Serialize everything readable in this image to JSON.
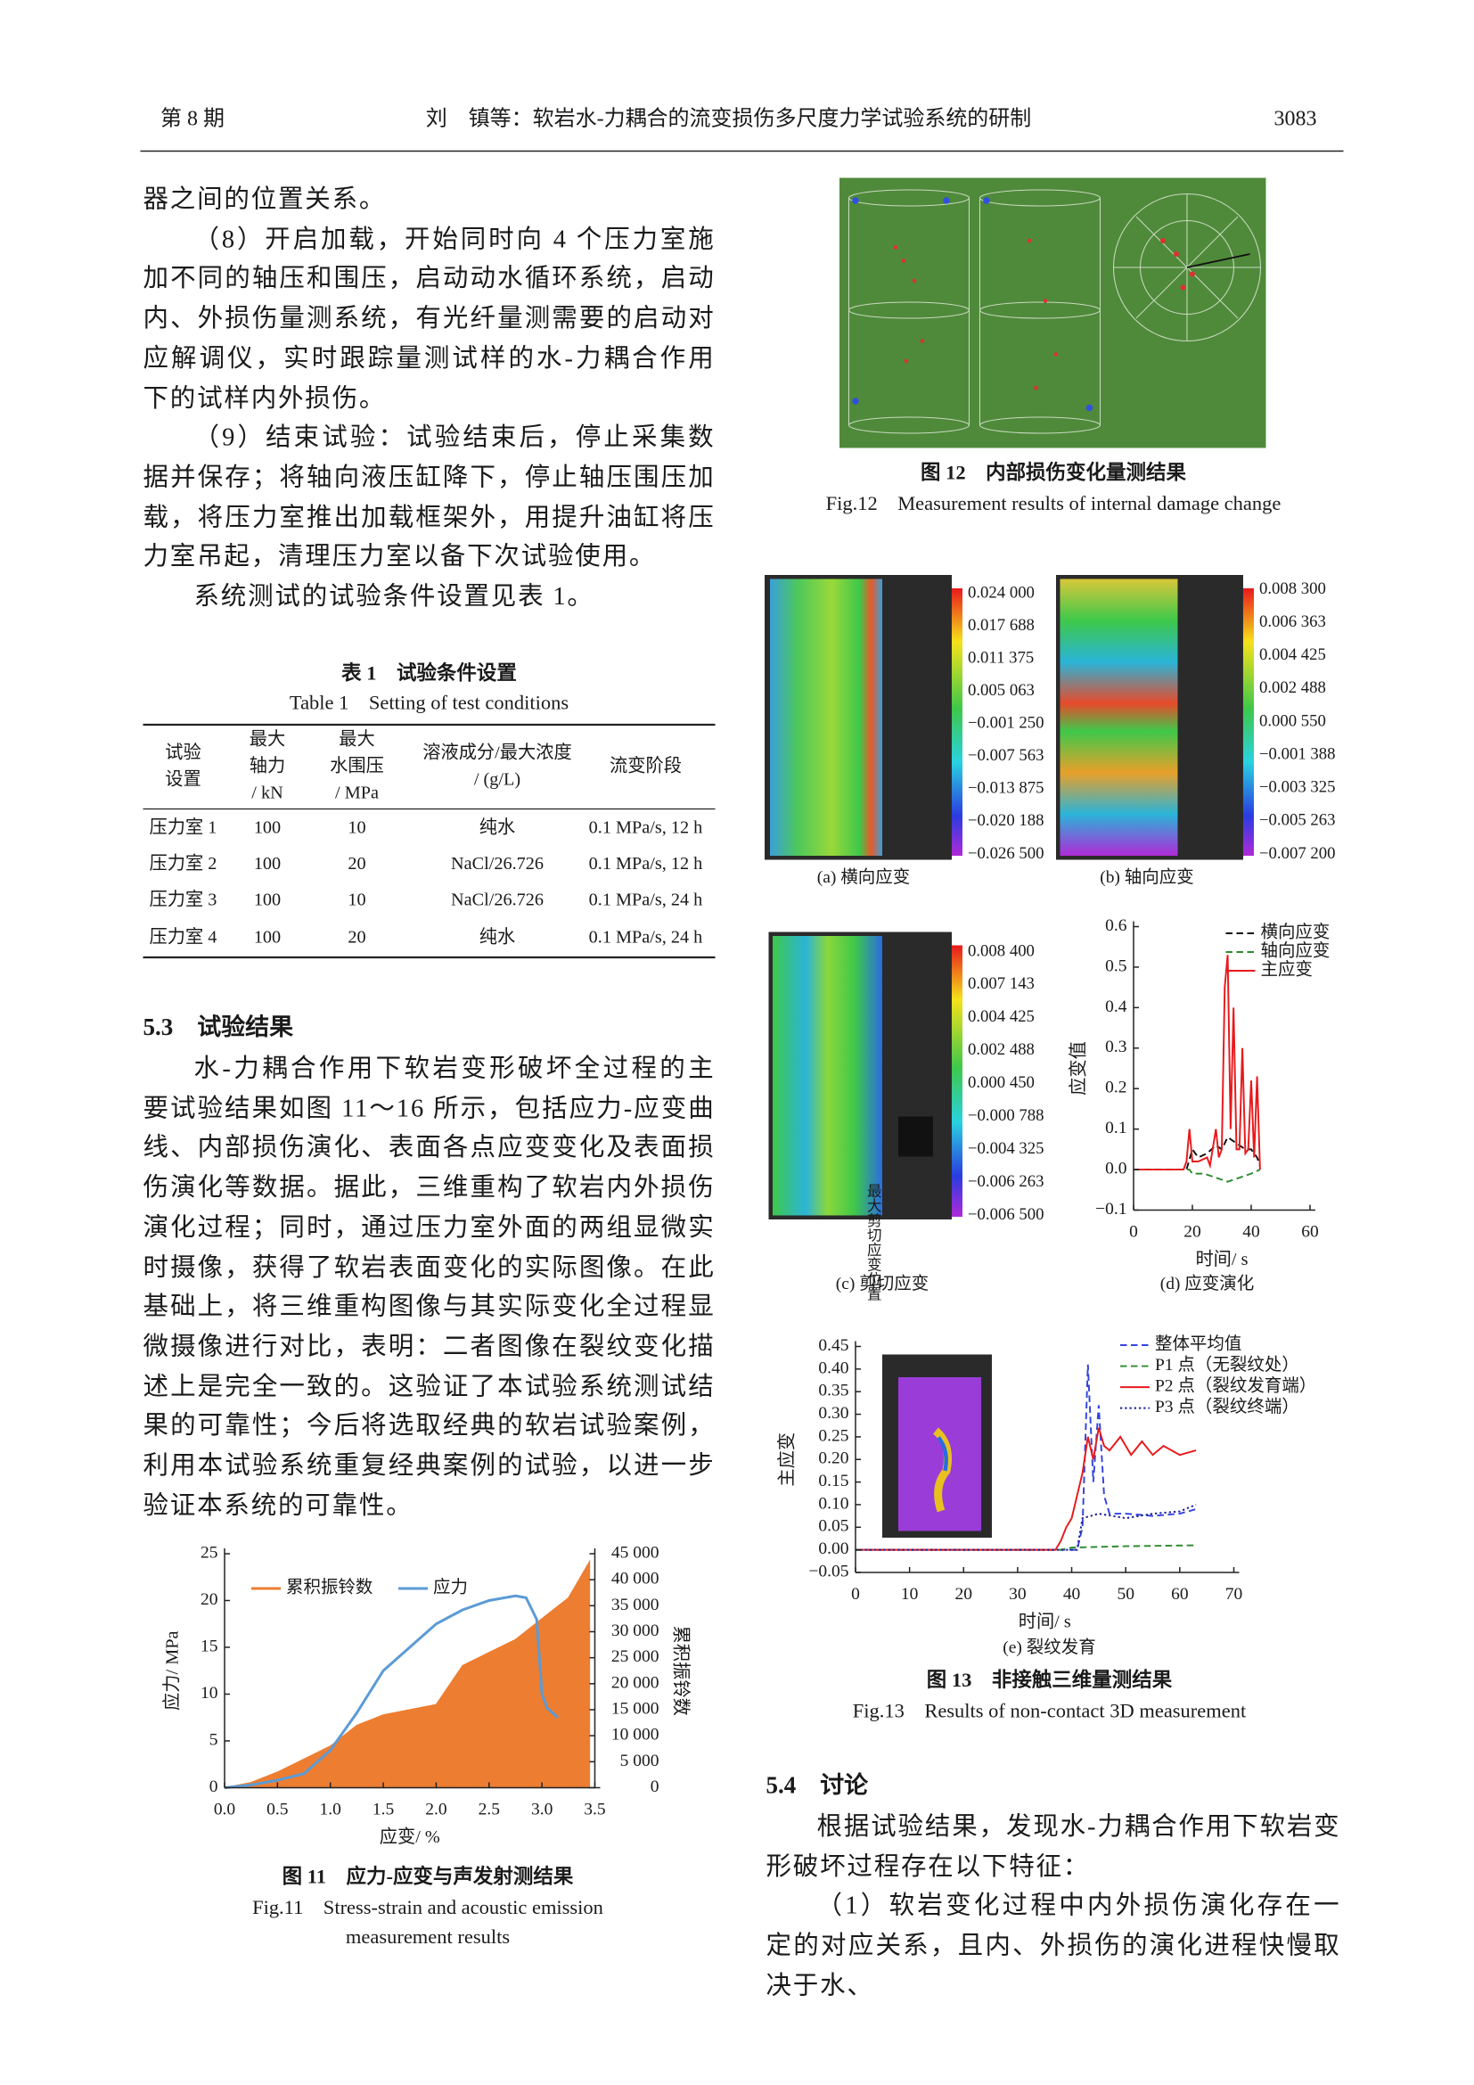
{
  "header": {
    "issue": "第 8 期",
    "title": "刘　镇等：软岩水-力耦合的流变损伤多尺度力学试验系统的研制",
    "page": "3083"
  },
  "left_column": {
    "paragraphs": [
      "器之间的位置关系。",
      "（8）开启加载，开始同时向 4 个压力室施加不同的轴压和围压，启动动水循环系统，启动内、外损伤量测系统，有光纤量测需要的启动对应解调仪，实时跟踪量测试样的水-力耦合作用下的试样内外损伤。",
      "（9）结束试验：试验结束后，停止采集数据并保存；将轴向液压缸降下，停止轴压围压加载，将压力室推出加载框架外，用提升油缸将压力室吊起，清理压力室以备下次试验使用。",
      "系统测试的试验条件设置见表 1。"
    ],
    "section_heading": "5.3　试验结果",
    "section_paragraphs": [
      "水-力耦合作用下软岩变形破坏全过程的主要试验结果如图 11～16 所示，包括应力-应变曲线、内部损伤演化、表面各点应变变化及表面损伤演化等数据。据此，三维重构了软岩内外损伤演化过程；同时，通过压力室外面的两组显微实时摄像，获得了软岩表面变化的实际图像。在此基础上，将三维重构图像与其实际变化全过程显微摄像进行对比，表明：二者图像在裂纹变化描述上是完全一致的。这验证了本试验系统测试结果的可靠性；今后将选取经典的软岩试验案例，利用本试验系统重复经典案例的试验，以进一步验证本系统的可靠性。"
    ]
  },
  "table": {
    "title_cn": "表 1　试验条件设置",
    "title_en": "Table 1　Setting of test conditions",
    "header": [
      [
        "试验",
        "设置"
      ],
      [
        "最大",
        "轴力",
        "/ kN"
      ],
      [
        "最大",
        "水围压",
        "/ MPa"
      ],
      [
        "溶液成分/最大浓度",
        "/ (g/L)"
      ],
      [
        "流变阶段"
      ]
    ],
    "rows": [
      [
        "压力室 1",
        "100",
        "10",
        "纯水",
        "0.1 MPa/s, 12 h"
      ],
      [
        "压力室 2",
        "100",
        "20",
        "NaCl/26.726",
        "0.1 MPa/s, 12 h"
      ],
      [
        "压力室 3",
        "100",
        "10",
        "NaCl/26.726",
        "0.1 MPa/s, 24 h"
      ],
      [
        "压力室 4",
        "100",
        "20",
        "纯水",
        "0.1 MPa/s, 24 h"
      ]
    ]
  },
  "figures": {
    "fig11": {
      "caption_cn": "图 11　应力-应变与声发射测结果",
      "caption_en": [
        "Fig.11　Stress-strain and acoustic emission",
        "measurement results"
      ]
    },
    "fig12": {
      "caption_cn": "图 12　内部损伤变化量测结果",
      "caption_en": "Fig.12　Measurement results of internal damage change"
    },
    "fig13": {
      "caption_cn": "图 13　非接触三维量测结果",
      "caption_en": "Fig.13　Results of non-contact 3D measurement",
      "panels": [
        "(a) 横向应变",
        "(b) 轴向应变",
        "(c) 剪切应变",
        "(d) 应变演化",
        "(e) 裂纹发育"
      ],
      "colorbar_a": [
        "0.024 000",
        "0.017 688",
        "0.011 375",
        "0.005 063",
        "−0.001 250",
        "−0.007 563",
        "−0.013 875",
        "−0.020 188",
        "−0.026 500"
      ],
      "colorbar_b": [
        "0.008 300",
        "0.006 363",
        "0.004 425",
        "0.002 488",
        "0.000 550",
        "−0.001 388",
        "−0.003 325",
        "−0.005 263",
        "−0.007 200"
      ],
      "colorbar_c": [
        "0.008 400",
        "0.007 143",
        "0.004 425",
        "0.002 488",
        "0.000 450",
        "−0.000 788",
        "−0.004 325",
        "−0.006 263",
        "−0.006 500"
      ],
      "overlay_c": "最大剪切应变位置"
    }
  },
  "right_column": {
    "section_heading": "5.4　讨论",
    "paragraphs": [
      "根据试验结果，发现水-力耦合作用下软岩变形破坏过程存在以下特征：",
      "（1）软岩变化过程中内外损伤演化存在一定的对应关系，且内、外损伤的演化进程快慢取决于水、"
    ]
  },
  "chart_data": [
    {
      "type": "line",
      "xlabel": "应变/ %",
      "ylabel": "应力/ MPa",
      "y2label": "累积振铃数",
      "xlim": [
        0,
        3.5
      ],
      "xticks": [
        {
          "value": 0,
          "label": "0.0"
        },
        0.5,
        {
          "value": 1,
          "label": "1.0"
        },
        1.5,
        {
          "value": 2,
          "label": "2.0"
        },
        2.5,
        {
          "value": 3,
          "label": "3.0"
        },
        3.5
      ],
      "ylim": [
        0,
        25
      ],
      "yticks": [
        0,
        5,
        10,
        15,
        20,
        25
      ],
      "y2lim": [
        0,
        45000
      ],
      "y2ticks": [
        0,
        {
          "value": 5000,
          "label": "5 000"
        },
        {
          "value": 10000,
          "label": "10 000"
        },
        {
          "value": 15000,
          "label": "15 000"
        },
        {
          "value": 20000,
          "label": "20 000"
        },
        {
          "value": 25000,
          "label": "25 000"
        },
        {
          "value": 30000,
          "label": "30 000"
        },
        {
          "value": 35000,
          "label": "35 000"
        },
        {
          "value": 40000,
          "label": "40 000"
        },
        {
          "value": 45000,
          "label": "45 000"
        }
      ],
      "series": [
        {
          "name": "累积振铃数",
          "color": "#ed7d31",
          "kind": "area",
          "axis": "y2",
          "linestyle": "solid",
          "x": [
            0,
            0.25,
            0.5,
            0.75,
            1.0,
            1.25,
            1.5,
            1.75,
            2.0,
            2.25,
            2.5,
            2.75,
            3.0,
            3.25,
            3.45
          ],
          "values": [
            0,
            1000,
            3000,
            5500,
            8000,
            12000,
            14000,
            15000,
            16000,
            23500,
            26000,
            28500,
            32500,
            36500,
            43500
          ]
        },
        {
          "name": "应力",
          "color": "#5b9bd5",
          "kind": "line",
          "linestyle": "solid",
          "x": [
            0,
            0.25,
            0.5,
            0.75,
            1.0,
            1.25,
            1.5,
            1.75,
            2.0,
            2.25,
            2.5,
            2.75,
            2.85,
            2.95,
            3.0,
            3.05,
            3.15
          ],
          "values": [
            0,
            0.3,
            0.8,
            1.5,
            4,
            8,
            12.5,
            15,
            17.5,
            19,
            20,
            20.5,
            20.3,
            18,
            10,
            8.5,
            7.5
          ]
        }
      ]
    },
    {
      "type": "line",
      "xlabel": "时间/ s",
      "ylabel": "应变值",
      "xlim": [
        0,
        60
      ],
      "xticks": [
        0,
        20,
        40,
        60
      ],
      "ylim": [
        -0.1,
        0.6
      ],
      "yticks": [
        {
          "value": -0.1,
          "label": "−0.1"
        },
        {
          "value": 0,
          "label": "0.0"
        },
        0.1,
        0.2,
        0.3,
        0.4,
        0.5,
        0.6
      ],
      "series": [
        {
          "name": "横向应变",
          "color": "#111111",
          "kind": "line",
          "linestyle": "dashed",
          "x": [
            0,
            18,
            20,
            22,
            25,
            28,
            30,
            32,
            34,
            36,
            38,
            40,
            42,
            43
          ],
          "values": [
            0,
            0,
            0.05,
            0.03,
            0.04,
            0.06,
            0.05,
            0.08,
            0.07,
            0.06,
            0.05,
            0.05,
            0.03,
            0.01
          ]
        },
        {
          "name": "轴向应变",
          "color": "#2e8b2e",
          "kind": "line",
          "linestyle": "dashed",
          "x": [
            0,
            19,
            20,
            24,
            28,
            32,
            36,
            40,
            43
          ],
          "values": [
            0,
            0,
            -0.01,
            -0.01,
            -0.02,
            -0.03,
            -0.02,
            -0.01,
            0
          ]
        },
        {
          "name": "主应变",
          "color": "#e8191c",
          "kind": "line",
          "linestyle": "solid",
          "x": [
            0,
            17,
            18,
            19,
            20,
            22,
            25,
            26,
            28,
            29,
            30,
            31,
            32,
            33,
            34,
            35,
            36,
            37,
            38,
            39,
            40,
            41,
            42,
            43
          ],
          "values": [
            0,
            0,
            0.02,
            0.1,
            0.02,
            0.02,
            0.03,
            0.01,
            0.1,
            0.03,
            0.05,
            0.45,
            0.53,
            0.1,
            0.4,
            0.05,
            0.05,
            0.3,
            0.04,
            0.05,
            0.22,
            0.03,
            0.23,
            0
          ]
        }
      ]
    },
    {
      "type": "line",
      "xlabel": "时间/ s",
      "ylabel": "主应变",
      "xlim": [
        0,
        70
      ],
      "xticks": [
        0,
        10,
        20,
        30,
        40,
        50,
        60,
        70
      ],
      "ylim": [
        -0.05,
        0.45
      ],
      "yticks": [
        {
          "value": -0.05,
          "label": "−0.05"
        },
        {
          "value": 0,
          "label": "0.00"
        },
        0.05,
        {
          "value": 0.1,
          "label": "0.10"
        },
        0.15,
        {
          "value": 0.2,
          "label": "0.20"
        },
        0.25,
        {
          "value": 0.3,
          "label": "0.30"
        },
        0.35,
        {
          "value": 0.4,
          "label": "0.40"
        },
        0.45
      ],
      "series": [
        {
          "name": "整体平均值",
          "color": "#3344dd",
          "kind": "line",
          "linestyle": "dashed",
          "x": [
            0,
            41,
            42,
            43,
            44,
            45,
            46,
            47,
            50,
            55,
            60,
            63
          ],
          "values": [
            0,
            0,
            0.05,
            0.41,
            0.15,
            0.32,
            0.12,
            0.08,
            0.08,
            0.075,
            0.08,
            0.09
          ]
        },
        {
          "name": "P1 点（无裂纹处）",
          "color": "#2e8b2e",
          "kind": "line",
          "linestyle": "dashed",
          "x": [
            0,
            38,
            40,
            50,
            63
          ],
          "values": [
            0,
            0,
            0.005,
            0.008,
            0.01
          ]
        },
        {
          "name": "P2 点（裂纹发育端）",
          "color": "#e8191c",
          "kind": "line",
          "linestyle": "solid",
          "x": [
            0,
            37,
            38,
            39,
            40,
            41,
            42,
            43,
            44,
            45,
            46,
            47,
            49,
            51,
            53,
            55,
            57,
            60,
            63
          ],
          "values": [
            0,
            0,
            0.02,
            0.05,
            0.07,
            0.12,
            0.17,
            0.25,
            0.2,
            0.27,
            0.23,
            0.22,
            0.25,
            0.21,
            0.24,
            0.21,
            0.23,
            0.21,
            0.22
          ]
        },
        {
          "name": "P3 点（裂纹终端）",
          "color": "#1a1a9a",
          "kind": "line",
          "linestyle": "dotted",
          "x": [
            0,
            41,
            42,
            45,
            50,
            55,
            60,
            63
          ],
          "values": [
            0,
            0,
            0.07,
            0.08,
            0.07,
            0.08,
            0.085,
            0.1
          ]
        }
      ]
    }
  ]
}
